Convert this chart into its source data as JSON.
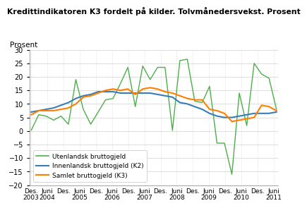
{
  "title": "Kredittindikatoren K3 fordelt på kilder. Tolvmånedersvekst. Prosent",
  "ylabel": "Prosent",
  "ylim": [
    -20,
    30
  ],
  "yticks": [
    -20,
    -15,
    -10,
    -5,
    0,
    5,
    10,
    15,
    20,
    25,
    30
  ],
  "legend": [
    {
      "label": "Utenlandsk bruttogjeld",
      "color": "#4daf4a"
    },
    {
      "label": "Innenlandsk bruttogjeld (K2)",
      "color": "#377eb8"
    },
    {
      "label": "Samlet bruttogjeld (K3)",
      "color": "#ff7f00"
    }
  ],
  "x_start": 2003.917,
  "x_end": 2011.5,
  "xtick_positions": [
    2003.917,
    2004.417,
    2004.917,
    2005.417,
    2005.917,
    2006.417,
    2006.917,
    2007.417,
    2007.917,
    2008.417,
    2008.917,
    2009.417,
    2009.917,
    2010.417,
    2010.917,
    2011.417
  ],
  "xtick_top": [
    "Des.",
    "Juni",
    "Des.",
    "Juni",
    "Des.",
    "Juni",
    "Des.",
    "Juni",
    "Des.",
    "Juni",
    "Des.",
    "Juni",
    "Des.",
    "Juni",
    "Des.",
    "Juni"
  ],
  "xtick_bot": [
    "2003",
    "2004",
    "",
    "2005",
    "",
    "2006",
    "",
    "2007",
    "",
    "2008",
    "",
    "2009",
    "",
    "2010",
    "",
    "2011"
  ],
  "green": [
    0.3,
    6.0,
    5.5,
    4.0,
    5.5,
    2.5,
    19.0,
    8.0,
    2.5,
    7.0,
    11.5,
    12.0,
    17.5,
    23.5,
    9.0,
    24.0,
    19.0,
    23.5,
    23.5,
    0.2,
    26.0,
    26.5,
    11.0,
    10.5,
    16.5,
    -4.5,
    -4.5,
    -16.0,
    14.0,
    2.0,
    25.0,
    21.0,
    19.5,
    8.0
  ],
  "blue": [
    7.0,
    7.5,
    8.0,
    8.5,
    9.5,
    10.5,
    12.0,
    13.0,
    13.5,
    14.5,
    14.5,
    14.5,
    14.0,
    14.0,
    14.0,
    14.0,
    14.0,
    13.5,
    13.0,
    12.5,
    10.5,
    10.0,
    9.0,
    8.0,
    6.5,
    5.5,
    5.0,
    5.0,
    5.5,
    6.0,
    6.5,
    6.5,
    6.5,
    7.0
  ],
  "orange": [
    6.0,
    7.5,
    7.5,
    7.5,
    8.0,
    8.5,
    10.0,
    12.5,
    13.0,
    14.0,
    15.0,
    15.5,
    15.0,
    15.5,
    13.5,
    15.5,
    16.0,
    15.5,
    14.5,
    14.0,
    13.0,
    12.0,
    11.5,
    11.5,
    8.0,
    7.5,
    6.5,
    3.5,
    4.0,
    4.5,
    5.0,
    9.5,
    9.0,
    7.5
  ]
}
